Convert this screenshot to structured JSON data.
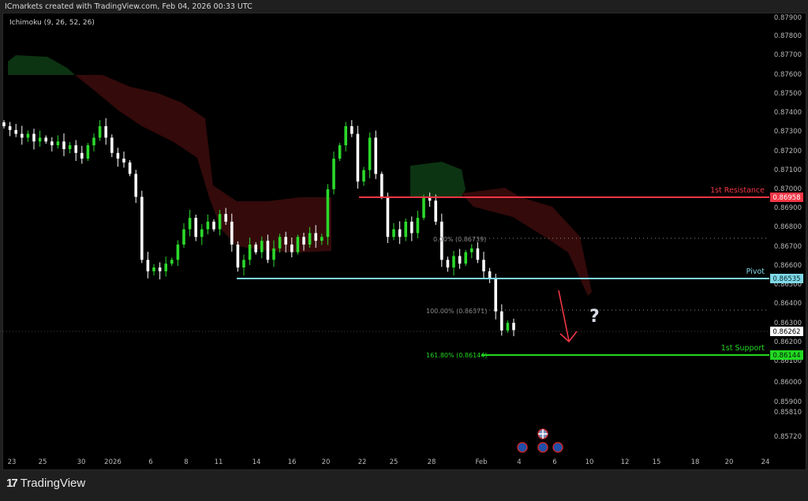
{
  "header": {
    "title": "ICmarkets created with TradingView.com, Feb 04, 2026 00:33 UTC"
  },
  "indicator": {
    "label": "Ichimoku (9, 26, 52, 26)"
  },
  "footer": {
    "brand": "TradingView",
    "logo_mark": "TV"
  },
  "levels": {
    "resistance": {
      "label": "1st Resistance",
      "price": "0.86958",
      "color": "#f23645"
    },
    "pivot": {
      "label": "Pivot",
      "price": "0.86535",
      "color": "#7fd8e6"
    },
    "support": {
      "label": "1st Support",
      "price": "0.86144",
      "color": "#22d822"
    },
    "current": {
      "price": "0.86262"
    },
    "fib_0": {
      "label": "0.00% (0.86739)"
    },
    "fib_100": {
      "label": "100.00% (0.86371)"
    },
    "fib_1618": {
      "label": "161.80% (0.86144)"
    }
  },
  "annotation": {
    "question": "?",
    "arrow_color": "#f23645"
  },
  "event_icons": [
    "uk-flag-icon",
    "eu-flag-icon",
    "eu-flag-icon",
    "eu-flag-icon"
  ],
  "chart_data": {
    "type": "candlestick",
    "title": "",
    "price_axis_ticks": [
      "0.87900",
      "0.87800",
      "0.87700",
      "0.87600",
      "0.87500",
      "0.87400",
      "0.87300",
      "0.87200",
      "0.87100",
      "0.87000",
      "0.86900",
      "0.86800",
      "0.86700",
      "0.86600",
      "0.86500",
      "0.86400",
      "0.86300",
      "0.86200",
      "0.86100",
      "0.86000",
      "0.85900",
      "0.85810",
      "0.85720"
    ],
    "time_axis_ticks": [
      "23",
      "25",
      "30",
      "2026",
      "6",
      "8",
      "11",
      "14",
      "16",
      "20",
      "22",
      "25",
      "28",
      "Feb",
      "4",
      "6",
      "10",
      "12",
      "15",
      "18",
      "20",
      "24"
    ],
    "ylim": [
      0.857,
      0.879
    ],
    "up_color": "#2bd92b",
    "down_color": "#ffffff",
    "closes": [
      0.8733,
      0.8731,
      0.8729,
      0.8727,
      0.8729,
      0.8725,
      0.8727,
      0.8725,
      0.8723,
      0.8725,
      0.8721,
      0.8723,
      0.8719,
      0.8716,
      0.8723,
      0.8727,
      0.8733,
      0.8727,
      0.8719,
      0.8716,
      0.8714,
      0.8708,
      0.8696,
      0.8663,
      0.8657,
      0.8659,
      0.8657,
      0.8661,
      0.8663,
      0.8671,
      0.8679,
      0.8685,
      0.8675,
      0.8679,
      0.8683,
      0.8679,
      0.8687,
      0.8683,
      0.8671,
      0.8659,
      0.8663,
      0.8671,
      0.8667,
      0.8673,
      0.8663,
      0.8669,
      0.8675,
      0.8671,
      0.8667,
      0.8675,
      0.8671,
      0.8677,
      0.8673,
      0.8675,
      0.87,
      0.8716,
      0.8723,
      0.8733,
      0.8729,
      0.8704,
      0.871,
      0.8727,
      0.8708,
      0.8696,
      0.8675,
      0.8679,
      0.8675,
      0.8683,
      0.8677,
      0.8685,
      0.8696,
      0.8694,
      0.8683,
      0.8663,
      0.8659,
      0.8665,
      0.8661,
      0.8667,
      0.8669,
      0.8663,
      0.8657,
      0.8653,
      0.8636,
      0.8626,
      0.863,
      0.86262
    ]
  }
}
